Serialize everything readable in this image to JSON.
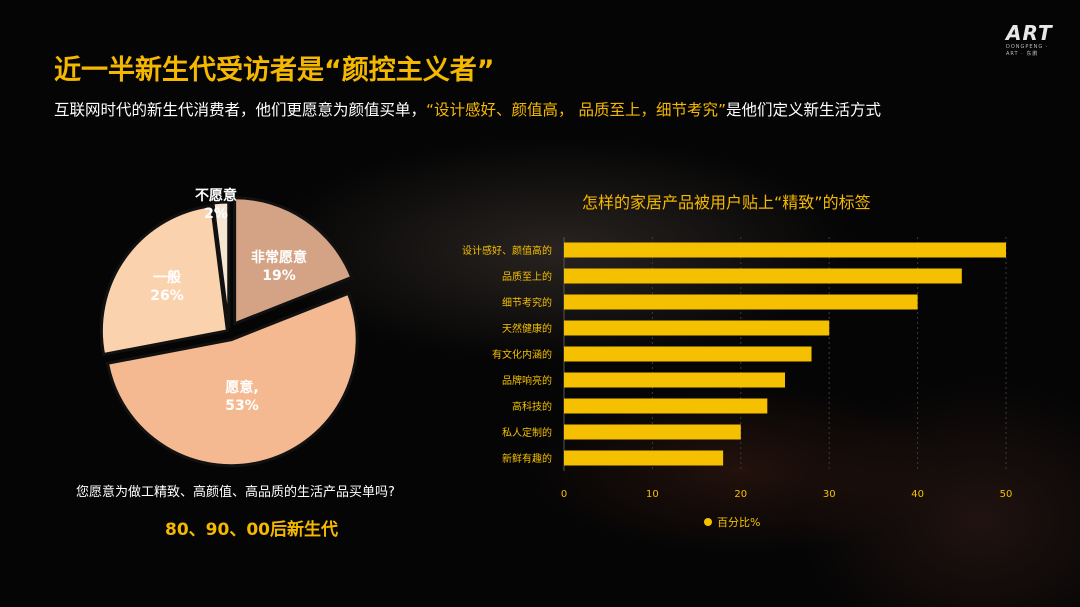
{
  "logo": {
    "main": "ART",
    "sub": "DONGPENG · ART · 东鹏"
  },
  "title": "近一半新生代受访者是“颜控主义者”",
  "subtitle": {
    "before": "互联网时代的新生代消费者，他们更愿意为颜值买单，",
    "highlight": "“设计感好、颜值高， 品质至上，细节考究”",
    "after": "是他们定义新生活方式"
  },
  "colors": {
    "accent": "#f5b800",
    "bar": "#f5c000",
    "background": "#050505"
  },
  "chart_data": [
    {
      "type": "pie",
      "slices": [
        {
          "label": "非常愿意",
          "value": 19,
          "value_label": "19%",
          "color": "#d4a284"
        },
        {
          "label": "愿意,",
          "value": 53,
          "value_label": "53%",
          "color": "#f4b990"
        },
        {
          "label": "一般",
          "value": 26,
          "value_label": "26%",
          "color": "#fbd2ae"
        },
        {
          "label": "不愿意",
          "value": 2,
          "value_label": "2%",
          "color": "#f8e6d4"
        }
      ],
      "question": "您愿意为做工精致、高颜值、高品质的生活产品买单吗?",
      "footer": "80、90、00后新生代"
    },
    {
      "type": "bar",
      "orientation": "horizontal",
      "title": "怎样的家居产品被用户贴上“精致”的标签",
      "categories": [
        "设计感好、颜值高的",
        "品质至上的",
        "细节考究的",
        "天然健康的",
        "有文化内涵的",
        "品牌响亮的",
        "高科技的",
        "私人定制的",
        "新鲜有趣的"
      ],
      "series": [
        {
          "name": "百分比%",
          "values": [
            50,
            45,
            40,
            30,
            28,
            25,
            23,
            20,
            18
          ]
        }
      ],
      "xlim": [
        0,
        50
      ],
      "xticks": [
        "0",
        "10",
        "20",
        "30",
        "40",
        "50"
      ],
      "grid": true,
      "legend": "bottom"
    }
  ]
}
